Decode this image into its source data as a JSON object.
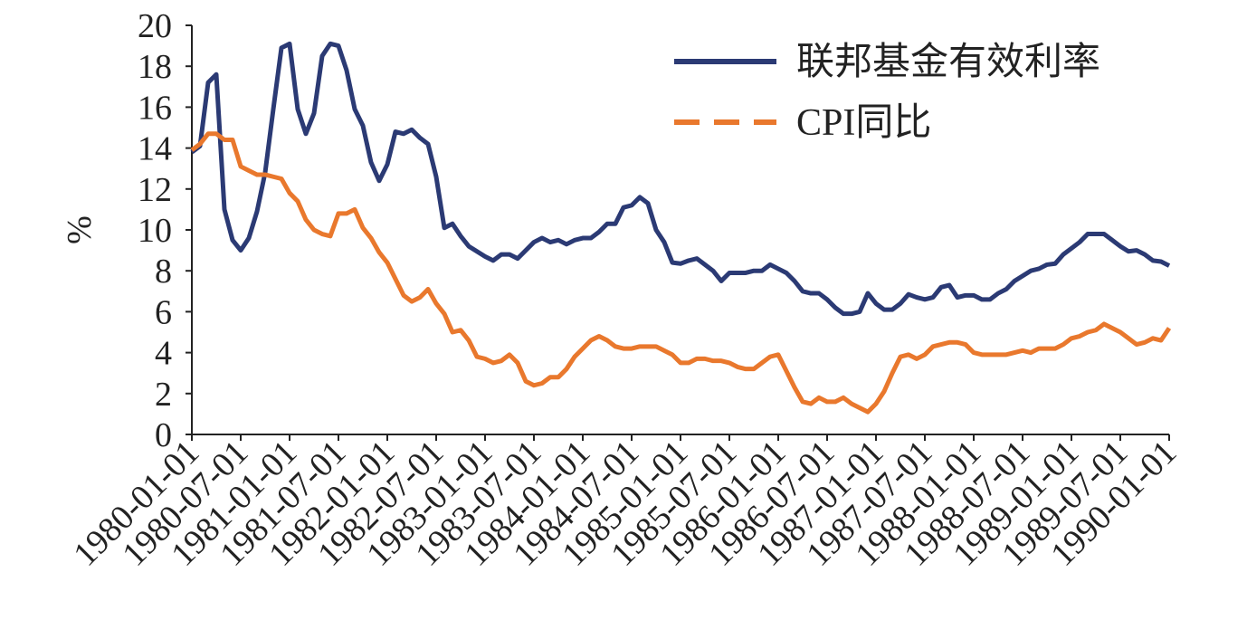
{
  "chart_data": {
    "type": "line",
    "ylabel": "%",
    "categories": [
      "1980-01-01",
      null,
      null,
      null,
      null,
      null,
      "1980-07-01",
      null,
      null,
      null,
      null,
      null,
      "1981-01-01",
      null,
      null,
      null,
      null,
      null,
      "1981-07-01",
      null,
      null,
      null,
      null,
      null,
      "1982-01-01",
      null,
      null,
      null,
      null,
      null,
      "1982-07-01",
      null,
      null,
      null,
      null,
      null,
      "1983-01-01",
      null,
      null,
      null,
      null,
      null,
      "1983-07-01",
      null,
      null,
      null,
      null,
      null,
      "1984-01-01",
      null,
      null,
      null,
      null,
      null,
      "1984-07-01",
      null,
      null,
      null,
      null,
      null,
      "1985-01-01",
      null,
      null,
      null,
      null,
      null,
      "1985-07-01",
      null,
      null,
      null,
      null,
      null,
      "1986-01-01",
      null,
      null,
      null,
      null,
      null,
      "1986-07-01",
      null,
      null,
      null,
      null,
      null,
      "1987-01-01",
      null,
      null,
      null,
      null,
      null,
      "1987-07-01",
      null,
      null,
      null,
      null,
      null,
      "1988-01-01",
      null,
      null,
      null,
      null,
      null,
      "1988-07-01",
      null,
      null,
      null,
      null,
      null,
      "1989-01-01",
      null,
      null,
      null,
      null,
      null,
      "1989-07-01",
      null,
      null,
      null,
      null,
      null,
      "1990-01-01"
    ],
    "series": [
      {
        "name": "联邦基金有效利率",
        "color": "#2b3a74",
        "dashed": false,
        "values": [
          13.8,
          14.1,
          17.2,
          17.6,
          11.0,
          9.5,
          9.0,
          9.6,
          10.9,
          12.8,
          15.9,
          18.9,
          19.1,
          15.9,
          14.7,
          15.7,
          18.5,
          19.1,
          19.0,
          17.8,
          15.9,
          15.1,
          13.3,
          12.4,
          13.2,
          14.8,
          14.7,
          14.9,
          14.5,
          14.2,
          12.6,
          10.1,
          10.3,
          9.7,
          9.2,
          8.95,
          8.7,
          8.5,
          8.8,
          8.8,
          8.6,
          9.0,
          9.4,
          9.6,
          9.4,
          9.5,
          9.3,
          9.5,
          9.6,
          9.6,
          9.9,
          10.3,
          10.3,
          11.1,
          11.2,
          11.6,
          11.3,
          10.0,
          9.4,
          8.4,
          8.35,
          8.5,
          8.6,
          8.3,
          8.0,
          7.5,
          7.9,
          7.9,
          7.9,
          8.0,
          8.0,
          8.3,
          8.1,
          7.9,
          7.5,
          7.0,
          6.9,
          6.9,
          6.6,
          6.2,
          5.9,
          5.9,
          6.0,
          6.9,
          6.4,
          6.1,
          6.1,
          6.4,
          6.85,
          6.7,
          6.6,
          6.7,
          7.2,
          7.3,
          6.7,
          6.8,
          6.8,
          6.6,
          6.6,
          6.9,
          7.1,
          7.5,
          7.75,
          8.0,
          8.1,
          8.3,
          8.35,
          8.8,
          9.1,
          9.4,
          9.8,
          9.8,
          9.8,
          9.5,
          9.2,
          8.95,
          9.0,
          8.8,
          8.5,
          8.45,
          8.25
        ]
      },
      {
        "name": "CPI同比",
        "color": "#e9782d",
        "dashed": true,
        "values": [
          13.9,
          14.2,
          14.7,
          14.7,
          14.4,
          14.4,
          13.1,
          12.9,
          12.7,
          12.7,
          12.6,
          12.5,
          11.8,
          11.4,
          10.5,
          10.0,
          9.8,
          9.7,
          10.8,
          10.8,
          11.0,
          10.1,
          9.6,
          8.9,
          8.4,
          7.6,
          6.8,
          6.5,
          6.7,
          7.1,
          6.4,
          5.9,
          5.0,
          5.1,
          4.6,
          3.8,
          3.7,
          3.5,
          3.6,
          3.9,
          3.5,
          2.6,
          2.4,
          2.5,
          2.8,
          2.8,
          3.2,
          3.8,
          4.2,
          4.6,
          4.8,
          4.6,
          4.3,
          4.2,
          4.2,
          4.3,
          4.3,
          4.3,
          4.1,
          3.9,
          3.5,
          3.5,
          3.7,
          3.7,
          3.6,
          3.6,
          3.5,
          3.3,
          3.2,
          3.2,
          3.5,
          3.8,
          3.9,
          3.1,
          2.3,
          1.6,
          1.5,
          1.8,
          1.6,
          1.6,
          1.8,
          1.5,
          1.3,
          1.1,
          1.5,
          2.1,
          3.0,
          3.8,
          3.9,
          3.7,
          3.9,
          4.3,
          4.4,
          4.5,
          4.5,
          4.4,
          4.0,
          3.9,
          3.9,
          3.9,
          3.9,
          4.0,
          4.1,
          4.0,
          4.2,
          4.2,
          4.2,
          4.4,
          4.7,
          4.8,
          5.0,
          5.1,
          5.4,
          5.2,
          5.0,
          4.7,
          4.4,
          4.5,
          4.7,
          4.6,
          5.2
        ]
      }
    ],
    "ylim": [
      0,
      20
    ],
    "yticks": [
      0,
      2,
      4,
      6,
      8,
      10,
      12,
      14,
      16,
      18,
      20
    ],
    "grid": false,
    "legend": "upper right"
  }
}
